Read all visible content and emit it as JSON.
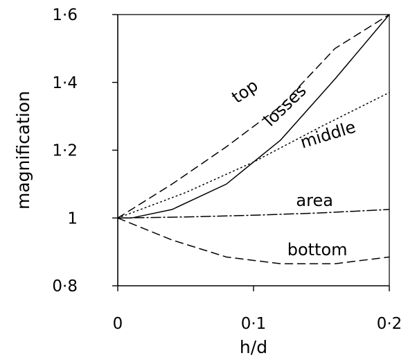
{
  "chart_data": {
    "type": "line",
    "xlabel": "h/d",
    "ylabel": "magnification",
    "xlim": [
      0,
      0.2
    ],
    "ylim": [
      0.8,
      1.6
    ],
    "xticks": [
      0,
      0.1,
      0.2
    ],
    "xtick_labels": [
      "0",
      "0·1",
      "0·2"
    ],
    "yticks": [
      0.8,
      1.0,
      1.2,
      1.4,
      1.6
    ],
    "ytick_labels": [
      "0·8",
      "1",
      "1·2",
      "1·4",
      "1·6"
    ],
    "grid": false,
    "legend": "none",
    "series": [
      {
        "name": "top",
        "style": "dashed",
        "x": [
          0,
          0.04,
          0.08,
          0.12,
          0.16,
          0.2
        ],
        "y": [
          1.0,
          1.1,
          1.21,
          1.33,
          1.5,
          1.6
        ]
      },
      {
        "name": "losses",
        "style": "solid",
        "x": [
          0,
          0.01,
          0.04,
          0.08,
          0.12,
          0.16,
          0.2
        ],
        "y": [
          1.0,
          1.0,
          1.025,
          1.1,
          1.23,
          1.41,
          1.6
        ]
      },
      {
        "name": "middle",
        "style": "dotted",
        "x": [
          0,
          0.05,
          0.1,
          0.15,
          0.2
        ],
        "y": [
          1.0,
          1.075,
          1.165,
          1.27,
          1.37
        ]
      },
      {
        "name": "area",
        "style": "dash-dot",
        "x": [
          0,
          0.05,
          0.1,
          0.15,
          0.2
        ],
        "y": [
          1.0,
          1.003,
          1.008,
          1.015,
          1.025
        ]
      },
      {
        "name": "bottom",
        "style": "dashed",
        "x": [
          0,
          0.04,
          0.08,
          0.12,
          0.16,
          0.2
        ],
        "y": [
          1.0,
          0.935,
          0.885,
          0.865,
          0.865,
          0.885
        ]
      }
    ],
    "annotations": [
      {
        "text": "top",
        "series": "top"
      },
      {
        "text": "losses",
        "series": "losses"
      },
      {
        "text": "middle",
        "series": "middle"
      },
      {
        "text": "area",
        "series": "area"
      },
      {
        "text": "bottom",
        "series": "bottom"
      }
    ]
  }
}
